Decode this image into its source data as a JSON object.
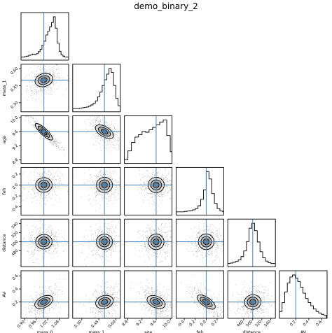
{
  "chart_data": {
    "type": "corner",
    "title": "demo_binary_2",
    "parameters": [
      "mass_0",
      "mass_1",
      "age",
      "feh",
      "distance",
      "AV"
    ],
    "axis_labels": [
      "mass_0",
      "mass_1",
      "age",
      "feh",
      "distance",
      "AV"
    ],
    "truths": [
      1.0,
      0.5,
      9.6,
      0.0,
      500,
      0.2
    ],
    "ranges": [
      [
        0.88,
        1.13
      ],
      [
        0.22,
        0.64
      ],
      [
        8.7,
        10.05
      ],
      [
        -0.55,
        0.32
      ],
      [
        445,
        550
      ],
      [
        -0.05,
        0.68
      ]
    ],
    "ticks": [
      [
        "0.90",
        "0.96",
        "1.02",
        "1.08"
      ],
      [
        "0.30",
        "0.45",
        "0.60"
      ],
      [
        "8.8",
        "9.2",
        "9.6",
        "10.0"
      ],
      [
        "-0.4",
        "-0.2",
        "0.0",
        "0.2"
      ],
      [
        "480",
        "500",
        "520",
        "540"
      ],
      [
        "0.2",
        "0.4",
        "0.6"
      ]
    ],
    "marginals": [
      {
        "param": "mass_0",
        "x": [
          0.885,
          0.895,
          0.905,
          0.915,
          0.925,
          0.935,
          0.945,
          0.955,
          0.965,
          0.975,
          0.985,
          0.995,
          1.005,
          1.015,
          1.025,
          1.035,
          1.045,
          1.055,
          1.065,
          1.075,
          1.085,
          1.095,
          1.105,
          1.115,
          1.125
        ],
        "counts": [
          1,
          1,
          2,
          3,
          5,
          6,
          8,
          7,
          9,
          14,
          20,
          30,
          40,
          55,
          65,
          75,
          86,
          100,
          72,
          35,
          15,
          6,
          3,
          1,
          1
        ]
      },
      {
        "param": "mass_1",
        "x": [
          0.23,
          0.25,
          0.27,
          0.29,
          0.31,
          0.33,
          0.35,
          0.37,
          0.39,
          0.41,
          0.43,
          0.45,
          0.47,
          0.49,
          0.51,
          0.53,
          0.55,
          0.57,
          0.59,
          0.61,
          0.63
        ],
        "counts": [
          1,
          1,
          1,
          2,
          3,
          4,
          5,
          7,
          10,
          14,
          20,
          30,
          42,
          58,
          72,
          86,
          100,
          90,
          58,
          26,
          8
        ]
      },
      {
        "param": "age",
        "x": [
          8.75,
          8.85,
          8.95,
          9.05,
          9.15,
          9.25,
          9.35,
          9.45,
          9.55,
          9.65,
          9.75,
          9.85,
          9.95,
          10.05
        ],
        "counts": [
          2,
          24,
          45,
          58,
          64,
          72,
          70,
          76,
          82,
          88,
          95,
          100,
          62,
          22
        ]
      },
      {
        "param": "feh",
        "x": [
          -0.525,
          -0.475,
          -0.425,
          -0.375,
          -0.325,
          -0.275,
          -0.225,
          -0.175,
          -0.125,
          -0.075,
          -0.025,
          0.025,
          0.075,
          0.125,
          0.175,
          0.225,
          0.275,
          0.325
        ],
        "counts": [
          1,
          1,
          1,
          2,
          3,
          4,
          6,
          9,
          16,
          32,
          55,
          100,
          82,
          46,
          22,
          9,
          3,
          1
        ]
      },
      {
        "param": "distance",
        "x": [
          447,
          453,
          459,
          465,
          471,
          477,
          483,
          489,
          495,
          501,
          507,
          513,
          519,
          525,
          531,
          537,
          543,
          549
        ],
        "counts": [
          1,
          2,
          4,
          6,
          10,
          18,
          32,
          55,
          88,
          100,
          82,
          54,
          30,
          15,
          7,
          3,
          1,
          1
        ]
      },
      {
        "param": "AV",
        "x": [
          -0.03,
          0.01,
          0.05,
          0.09,
          0.13,
          0.17,
          0.21,
          0.25,
          0.29,
          0.33,
          0.37,
          0.41,
          0.45,
          0.49,
          0.53,
          0.57,
          0.61,
          0.65
        ],
        "counts": [
          10,
          32,
          58,
          80,
          95,
          100,
          92,
          84,
          70,
          55,
          42,
          32,
          24,
          16,
          10,
          6,
          3,
          1
        ]
      }
    ],
    "correlations": {
      "1,0": 0.3,
      "2,0": -0.95,
      "2,1": -0.6,
      "3,0": 0.1,
      "3,1": 0.05,
      "3,2": 0.05,
      "4,0": 0.1,
      "4,1": 0.05,
      "4,2": 0.0,
      "4,3": 0.0,
      "5,0": 0.5,
      "5,1": 0.3,
      "5,2": -0.45,
      "5,3": -0.7,
      "5,4": 0.1
    },
    "grid": false,
    "truth_color": "#4682b4",
    "hist_color": "#000000",
    "contour_color": "#000000",
    "point_color": "#6e6e6e"
  }
}
